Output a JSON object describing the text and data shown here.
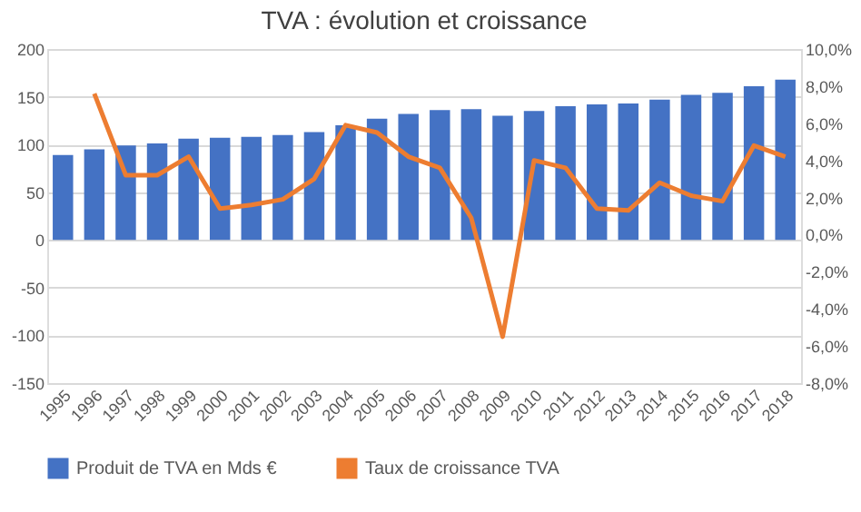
{
  "chart_data": {
    "type": "bar",
    "title": "TVA : évolution et croissance",
    "categories": [
      "1995",
      "1996",
      "1997",
      "1998",
      "1999",
      "2000",
      "2001",
      "2002",
      "2003",
      "2004",
      "2005",
      "2006",
      "2007",
      "2008",
      "2009",
      "2010",
      "2011",
      "2012",
      "2013",
      "2014",
      "2015",
      "2016",
      "2017",
      "2018"
    ],
    "series": [
      {
        "name": "Produit de TVA en Mds €",
        "color": "#4472c4",
        "values": [
          89,
          95,
          99,
          101,
          106,
          107,
          108,
          110,
          113,
          120,
          127,
          132,
          136,
          137,
          130,
          135,
          140,
          142,
          143,
          147,
          152,
          154,
          161,
          168
        ]
      },
      {
        "name": "Taux de croissance TVA",
        "type": "line",
        "axis": "y2",
        "color": "#ed7d31",
        "values": [
          null,
          7.6,
          3.2,
          3.2,
          4.2,
          1.4,
          1.6,
          1.9,
          3.0,
          5.9,
          5.5,
          4.2,
          3.6,
          0.9,
          -5.5,
          4.0,
          3.6,
          1.4,
          1.3,
          2.8,
          2.1,
          1.8,
          4.8,
          4.2
        ]
      }
    ],
    "ylim": [
      -150,
      200
    ],
    "yticks": [
      -150,
      -100,
      -50,
      0,
      50,
      100,
      150,
      200
    ],
    "y2lim": [
      -8,
      10
    ],
    "y2ticks": [
      {
        "value": -8,
        "label": "-8,0%"
      },
      {
        "value": -6,
        "label": "-6,0%"
      },
      {
        "value": -4,
        "label": "-4,0%"
      },
      {
        "value": -2,
        "label": "-2,0%"
      },
      {
        "value": 0,
        "label": "0,0%"
      },
      {
        "value": 2,
        "label": "2,0%"
      },
      {
        "value": 4,
        "label": "4,0%"
      },
      {
        "value": 6,
        "label": "6,0%"
      },
      {
        "value": 8,
        "label": "8,0%"
      },
      {
        "value": 10,
        "label": "10,0%"
      }
    ],
    "grid": "y",
    "legend": "bottom",
    "marker": "none",
    "line_style": "solid"
  }
}
